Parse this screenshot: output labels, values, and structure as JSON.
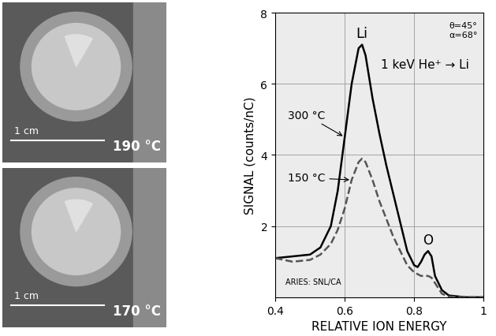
{
  "chart_data": {
    "type": "line",
    "x_label": "RELATIVE ION ENERGY",
    "y_label": "SIGNAL (counts/nC)",
    "xlim": [
      0.4,
      1
    ],
    "xticks": [
      0.4,
      0.6,
      0.8,
      1
    ],
    "ylim": [
      0,
      8
    ],
    "yticks": [
      2,
      4,
      6,
      8
    ],
    "grid": true,
    "x": [
      0.4,
      0.45,
      0.5,
      0.53,
      0.56,
      0.58,
      0.6,
      0.62,
      0.64,
      0.65,
      0.66,
      0.68,
      0.7,
      0.72,
      0.74,
      0.76,
      0.78,
      0.8,
      0.81,
      0.82,
      0.83,
      0.84,
      0.85,
      0.86,
      0.88,
      0.9,
      0.95,
      1.0
    ],
    "series": [
      {
        "name": "300 °C",
        "color": "#000000",
        "line_style": "solid",
        "values": [
          1.1,
          1.15,
          1.2,
          1.4,
          2.0,
          3.0,
          4.5,
          6.0,
          7.0,
          7.1,
          6.8,
          5.6,
          4.6,
          3.7,
          2.9,
          2.1,
          1.3,
          0.9,
          0.85,
          1.0,
          1.2,
          1.3,
          1.15,
          0.6,
          0.2,
          0.05,
          0,
          0
        ]
      },
      {
        "name": "150 °C",
        "color": "#555555",
        "line_style": "dashed",
        "values": [
          1.1,
          1.0,
          1.05,
          1.2,
          1.5,
          1.9,
          2.5,
          3.3,
          3.8,
          3.9,
          3.8,
          3.3,
          2.7,
          2.2,
          1.7,
          1.3,
          0.9,
          0.7,
          0.65,
          0.6,
          0.6,
          0.6,
          0.55,
          0.4,
          0.1,
          0.02,
          0,
          0
        ]
      }
    ],
    "annotations": [
      "Li",
      "O",
      "θ=45°",
      "α=68°",
      "1 keV He⁺ → Li",
      "ARIES: SNL/CA"
    ]
  },
  "images": [
    {
      "scale_label": "1 cm",
      "temperature": "190 °C"
    },
    {
      "scale_label": "1 cm",
      "temperature": "170 °C"
    }
  ]
}
